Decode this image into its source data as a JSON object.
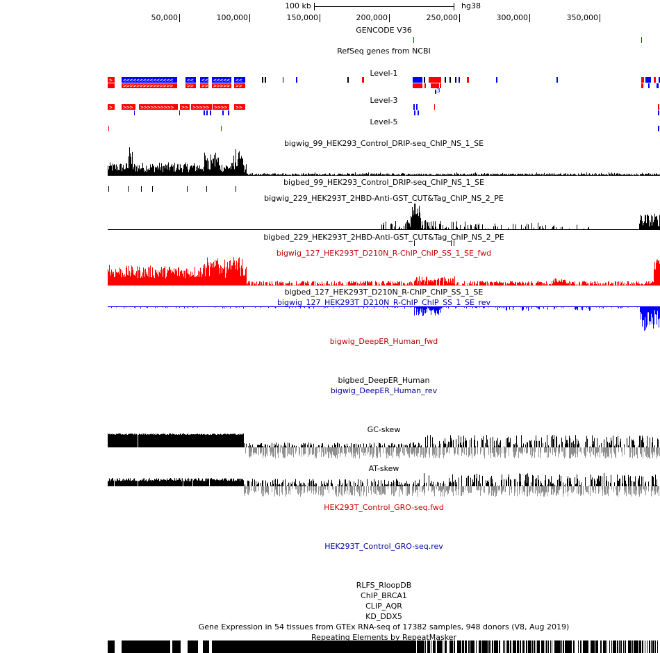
{
  "browser": {
    "scale_bar": {
      "label": "100 kb",
      "assembly": "hg38"
    },
    "ruler_ticks": [
      "50,000",
      "100,000",
      "150,000",
      "200,000",
      "250,000",
      "300,000",
      "350,000"
    ]
  },
  "tracks": {
    "gencode": "GENCODE V36",
    "refseq": "RefSeq genes from NCBI",
    "level1": "Level-1",
    "level1_gene_extra": "3",
    "level3": "Level-3",
    "level5": "Level-5",
    "bigwig99": "bigwig_99_HEK293_Control_DRIP-seq_ChIP_NS_1_SE",
    "bigbed99": "bigbed_99_HEK293_Control_DRIP-seq_ChIP_NS_1_SE",
    "bigwig229": "bigwig_229_HEK293T_2HBD-Anti-GST_CUT&Tag_ChIP_NS_2_PE",
    "bigbed229": "bigbed_229_HEK293T_2HBD-Anti-GST_CUT&Tag_ChIP_NS_2_PE",
    "bigwig127fwd": "bigwig_127_HEK293T_D210N_R-ChIP_ChIP_SS_1_SE_fwd",
    "bigbed127": "bigbed_127_HEK293T_D210N_R-ChIP_ChIP_SS_1_SE",
    "bigwig127rev": "bigwig_127_HEK293T_D210N_R-ChIP_ChIP_SS_1_SE_rev",
    "deeper_fwd": "bigwig_DeepER_Human_fwd",
    "deeper_bed": "bigbed_DeepER_Human",
    "deeper_rev": "bigwig_DeepER_Human_rev",
    "gc_skew": "GC-skew",
    "at_skew": "AT-skew",
    "gro_fwd": "HEK293T_Control_GRO-seq.fwd",
    "gro_rev": "HEK293T_Control_GRO-seq.rev",
    "rlfs": "RLFS_RloopDB",
    "chip_brca1": "ChIP_BRCA1",
    "clip_aqr": "CLIP_AQR",
    "kd_ddx5": "KD_DDX5",
    "gtex": "Gene Expression in 54 tissues from GTEx RNA-seq of 17382 samples, 948 donors (V8, Aug 2019)",
    "rmsk": "Repeating Elements by RepeatMasker"
  },
  "colors": {
    "plus_strand": "#ff0000",
    "minus_strand": "#0000ff",
    "signal_black": "#000000",
    "signal_grey": "#909090",
    "gencode_green": "#006400",
    "fwd_label": "#c00000",
    "rev_label": "#0000a0"
  }
}
